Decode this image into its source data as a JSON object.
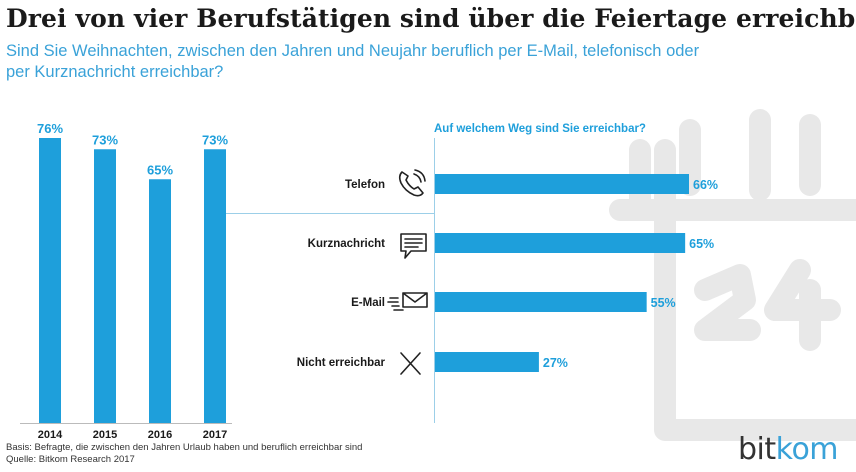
{
  "header": {
    "title": "Drei von vier Berufstätigen sind über die Feiertage erreichbar",
    "subtitle_line1": "Sind Sie Weihnachten, zwischen den Jahren und Neujahr beruflich per E-Mail, telefonisch oder",
    "subtitle_line2": "per Kurznachricht erreichbar?"
  },
  "footer": {
    "basis": "Basis: Befragte, die zwischen den Jahren Urlaub haben und beruflich erreichbar sind",
    "source": "Quelle: Bitkom Research 2017",
    "logo_bit": "bit",
    "logo_kom": "kom"
  },
  "colors": {
    "bar": "#1e9fdb",
    "label": "#1e9fdb",
    "text": "#1a1a1a",
    "watermark": "#e6e6e6",
    "connector": "#9ccfe8"
  },
  "chart_data": [
    {
      "type": "bar",
      "orientation": "vertical",
      "categories": [
        "2014",
        "2015",
        "2016",
        "2017"
      ],
      "values": [
        76,
        73,
        65,
        73
      ],
      "value_labels": [
        "76%",
        "73%",
        "65%",
        "73%"
      ],
      "ylim": [
        0,
        100
      ]
    },
    {
      "type": "bar",
      "orientation": "horizontal",
      "title": "Auf welchem Weg sind Sie erreichbar?",
      "categories": [
        "Telefon",
        "Kurznachricht",
        "E-Mail",
        "Nicht erreichbar"
      ],
      "icons": [
        "phone-icon",
        "message-icon",
        "mail-icon",
        "cross-icon"
      ],
      "values": [
        66,
        65,
        55,
        27
      ],
      "value_labels": [
        "66%",
        "65%",
        "55%",
        "27%"
      ],
      "xlim": [
        0,
        100
      ]
    }
  ]
}
